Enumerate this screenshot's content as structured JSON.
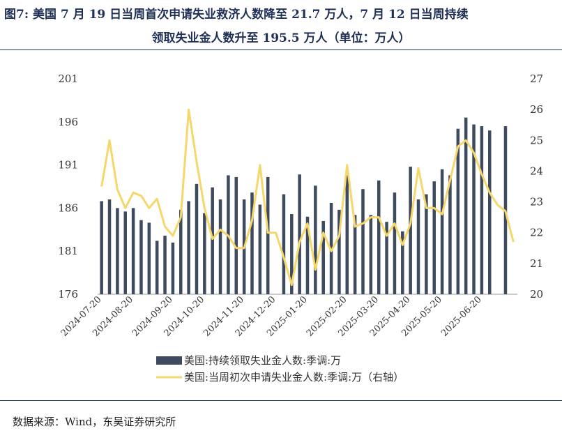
{
  "header": {
    "title_line1": "图7:  美国 7 月 19 日当周首次申请失业救济人数降至 21.7 万人，7 月 12 日当周持续",
    "title_line2": "领取失业金人数升至 195.5 万人（单位：万人）"
  },
  "footer": {
    "source": "数据来源：Wind，东吴证券研究所"
  },
  "colors": {
    "bar": "#3e4a5e",
    "line": "#f6d76b",
    "title": "#1f2f55"
  },
  "chart_data": {
    "type": "bar",
    "x": [
      "2024-07-20",
      "2024-07-27",
      "2024-08-03",
      "2024-08-10",
      "2024-08-17",
      "2024-08-24",
      "2024-08-31",
      "2024-09-07",
      "2024-09-14",
      "2024-09-21",
      "2024-09-28",
      "2024-10-05",
      "2024-10-12",
      "2024-10-19",
      "2024-10-26",
      "2024-11-02",
      "2024-11-09",
      "2024-11-16",
      "2024-11-23",
      "2024-11-30",
      "2024-12-07",
      "2024-12-14",
      "2024-12-21",
      "2024-12-28",
      "2025-01-04",
      "2025-01-11",
      "2025-01-18",
      "2025-01-25",
      "2025-02-01",
      "2025-02-08",
      "2025-02-15",
      "2025-02-22",
      "2025-03-01",
      "2025-03-08",
      "2025-03-15",
      "2025-03-22",
      "2025-03-29",
      "2025-04-05",
      "2025-04-12",
      "2025-04-19",
      "2025-04-26",
      "2025-05-03",
      "2025-05-10",
      "2025-05-17",
      "2025-05-24",
      "2025-05-31",
      "2025-06-07",
      "2025-06-14",
      "2025-06-21",
      "2025-06-28",
      "2025-07-05",
      "2025-07-12",
      "2025-07-19"
    ],
    "x_tick_labels": [
      "2024-07-20",
      "2024-08-20",
      "2024-09-20",
      "2024-10-20",
      "2024-11-20",
      "2024-12-20",
      "2025-01-20",
      "2025-02-20",
      "2025-03-20",
      "2025-04-20",
      "2025-05-20",
      "2025-06-20"
    ],
    "y_left": {
      "range": [
        176,
        201
      ],
      "ticks": [
        176,
        181,
        186,
        191,
        196,
        201
      ]
    },
    "y_right": {
      "range": [
        20,
        27
      ],
      "ticks": [
        20,
        21,
        22,
        23,
        24,
        25,
        26,
        27
      ]
    },
    "series": [
      {
        "name": "美国:持续领取失业金人数:季调:万",
        "type": "bar",
        "axis": "left",
        "values": [
          186.8,
          187.0,
          186.0,
          185.6,
          186.0,
          184.6,
          184.3,
          182.2,
          182.8,
          182.0,
          185.8,
          186.8,
          188.8,
          185.4,
          188.4,
          187.0,
          189.8,
          189.6,
          187.0,
          187.8,
          186.4,
          189.6,
          null,
          187.6,
          185.3,
          189.9,
          185.0,
          188.6,
          184.5,
          186.6,
          185.8,
          189.8,
          185.2,
          188.2,
          185.2,
          189.2,
          184.4,
          187.8,
          183.3,
          190.8,
          187.0,
          187.6,
          189.1,
          190.5,
          189.8,
          195.2,
          196.5,
          195.7,
          195.5,
          195.0,
          null,
          195.5,
          null
        ]
      },
      {
        "name": "美国:当周初次申请失业金人数:季调:万（右轴）",
        "type": "line",
        "axis": "right",
        "values": [
          23.5,
          25.0,
          23.4,
          22.8,
          23.3,
          23.2,
          22.8,
          23.1,
          22.2,
          21.9,
          22.5,
          26.0,
          24.3,
          22.8,
          21.8,
          22.1,
          21.9,
          21.5,
          21.5,
          22.4,
          24.2,
          22.0,
          22.0,
          21.2,
          20.3,
          21.7,
          22.3,
          20.8,
          22.0,
          21.4,
          21.9,
          24.2,
          22.2,
          22.3,
          22.5,
          22.5,
          21.9,
          22.3,
          21.6,
          22.3,
          24.1,
          22.8,
          22.8,
          22.6,
          23.7,
          24.8,
          25.0,
          24.6,
          23.9,
          23.3,
          22.9,
          22.7,
          21.7
        ]
      }
    ]
  }
}
